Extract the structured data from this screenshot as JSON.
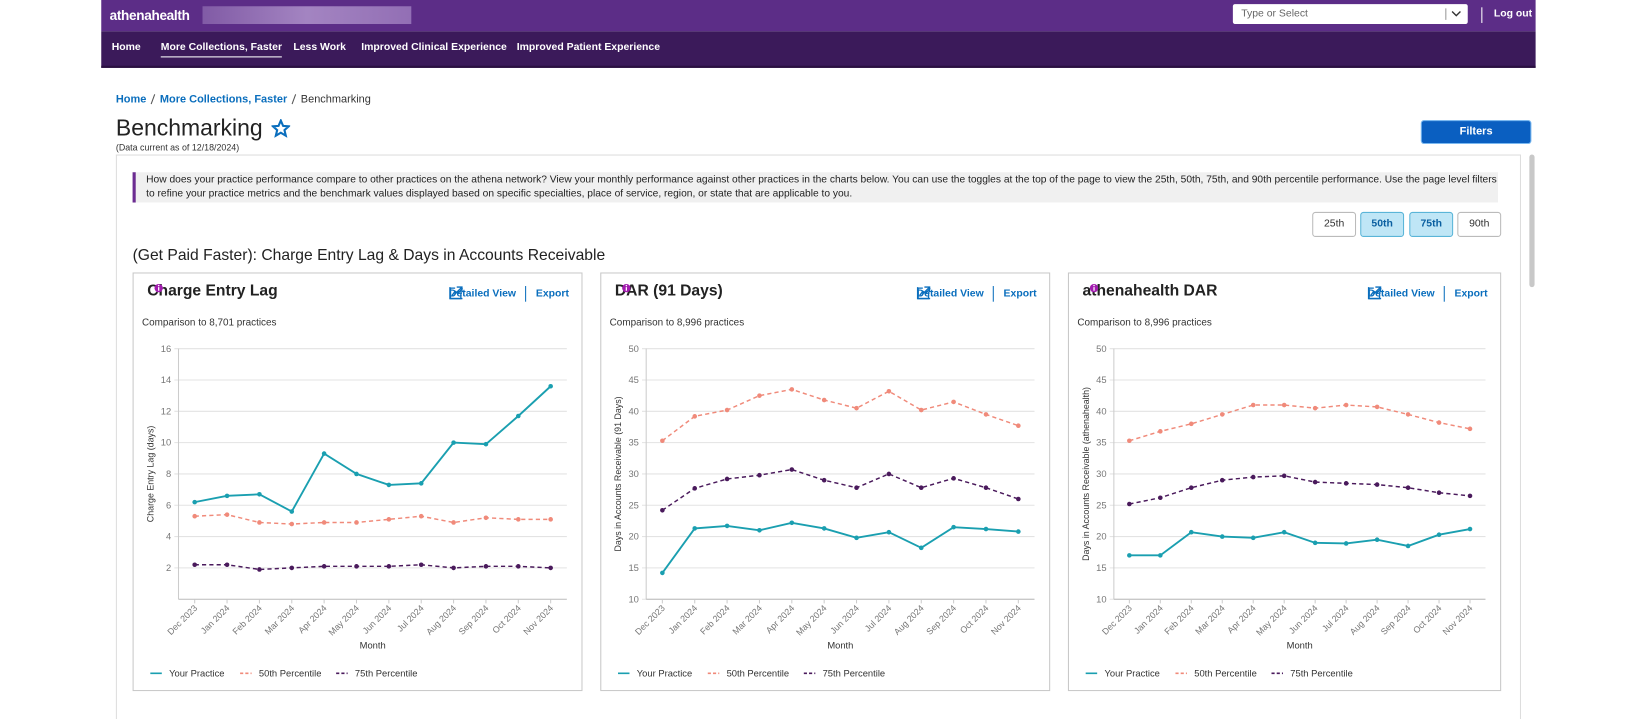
{
  "header": {
    "logo": "athenahealth",
    "search_placeholder": "Type or Select",
    "logout": "Log out"
  },
  "nav": {
    "items": [
      {
        "label": "Home",
        "active": false
      },
      {
        "label": "More Collections, Faster",
        "active": true
      },
      {
        "label": "Less Work",
        "active": false
      },
      {
        "label": "Improved Clinical Experience",
        "active": false
      },
      {
        "label": "Improved Patient Experience",
        "active": false
      }
    ]
  },
  "breadcrumb": [
    "Home",
    "More Collections, Faster",
    "Benchmarking"
  ],
  "page": {
    "title": "Benchmarking",
    "data_note": "(Data current as of 12/18/2024)",
    "filters_button": "Filters",
    "intro": "How does your practice performance compare to other practices on the athena network? View your monthly performance against other practices in the charts below. You can use the toggles at the top of the page to view the 25th, 50th, 75th, and 90th percentile performance. Use the page level filters to refine your practice metrics and the benchmark values displayed based on specific specialties, place of service, region, or state that are applicable to you.",
    "toggles": [
      {
        "label": "25th",
        "selected": false
      },
      {
        "label": "50th",
        "selected": true
      },
      {
        "label": "75th",
        "selected": true
      },
      {
        "label": "90th",
        "selected": false
      }
    ],
    "section_title": "(Get Paid Faster): Charge Entry Lag & Days in Accounts Receivable"
  },
  "chart_data": [
    {
      "type": "line",
      "title": "Charge Entry Lag",
      "links": [
        "Detailed View",
        "Export"
      ],
      "subtitle": "Comparison to 8,701 practices",
      "y_label": "Charge Entry Lag (days)",
      "x_label": "Month",
      "categories": [
        "Dec 2023",
        "Jan 2024",
        "Feb 2024",
        "Mar 2024",
        "Apr 2024",
        "May 2024",
        "Jun 2024",
        "Jul 2024",
        "Aug 2024",
        "Sep 2024",
        "Oct 2024",
        "Nov 2024"
      ],
      "ylim": [
        0,
        16
      ],
      "yticks": [
        2,
        4,
        6,
        8,
        10,
        12,
        14,
        16
      ],
      "grid": true,
      "series": [
        {
          "name": "Your Practice",
          "color": "#1a9fb0",
          "dashed": false,
          "values": [
            6.2,
            6.6,
            6.7,
            5.6,
            9.3,
            8.0,
            7.3,
            7.4,
            10.0,
            9.9,
            11.7,
            13.6
          ]
        },
        {
          "name": "50th Percentile",
          "color": "#f08a7a",
          "dashed": true,
          "values": [
            5.3,
            5.4,
            4.9,
            4.8,
            4.9,
            4.9,
            5.1,
            5.3,
            4.9,
            5.2,
            5.1,
            5.1
          ]
        },
        {
          "name": "75th Percentile",
          "color": "#4a1a5c",
          "dashed": true,
          "values": [
            2.2,
            2.2,
            1.9,
            2.0,
            2.1,
            2.1,
            2.1,
            2.2,
            2.0,
            2.1,
            2.1,
            2.0
          ]
        }
      ]
    },
    {
      "type": "line",
      "title": "DAR (91 Days)",
      "links": [
        "Detailed View",
        "Export"
      ],
      "subtitle": "Comparison to 8,996 practices",
      "y_label": "Days in Accounts Receivable (91 Days)",
      "x_label": "Month",
      "categories": [
        "Dec 2023",
        "Jan 2024",
        "Feb 2024",
        "Mar 2024",
        "Apr 2024",
        "May 2024",
        "Jun 2024",
        "Jul 2024",
        "Aug 2024",
        "Sep 2024",
        "Oct 2024",
        "Nov 2024"
      ],
      "ylim": [
        10,
        50
      ],
      "yticks": [
        10,
        15,
        20,
        25,
        30,
        35,
        40,
        45,
        50
      ],
      "grid": true,
      "series": [
        {
          "name": "Your Practice",
          "color": "#1a9fb0",
          "dashed": false,
          "values": [
            14.2,
            21.3,
            21.7,
            21.0,
            22.2,
            21.3,
            19.8,
            20.7,
            18.2,
            21.5,
            21.2,
            20.8
          ]
        },
        {
          "name": "50th Percentile",
          "color": "#f08a7a",
          "dashed": true,
          "values": [
            35.3,
            39.2,
            40.2,
            42.5,
            43.5,
            41.8,
            40.5,
            43.2,
            40.2,
            41.5,
            39.5,
            37.7
          ]
        },
        {
          "name": "75th Percentile",
          "color": "#4a1a5c",
          "dashed": true,
          "values": [
            24.2,
            27.7,
            29.2,
            29.8,
            30.7,
            29.0,
            27.8,
            30.0,
            27.8,
            29.3,
            27.8,
            26.0
          ]
        }
      ]
    },
    {
      "type": "line",
      "title": "athenahealth DAR",
      "links": [
        "Detailed View",
        "Export"
      ],
      "subtitle": "Comparison to 8,996 practices",
      "y_label": "Days in Accounts Receivable (athenahealth)",
      "x_label": "Month",
      "categories": [
        "Dec 2023",
        "Jan 2024",
        "Feb 2024",
        "Mar 2024",
        "Apr 2024",
        "May 2024",
        "Jun 2024",
        "Jul 2024",
        "Aug 2024",
        "Sep 2024",
        "Oct 2024",
        "Nov 2024"
      ],
      "ylim": [
        10,
        50
      ],
      "yticks": [
        10,
        15,
        20,
        25,
        30,
        35,
        40,
        45,
        50
      ],
      "grid": true,
      "series": [
        {
          "name": "Your Practice",
          "color": "#1a9fb0",
          "dashed": false,
          "values": [
            17.0,
            17.0,
            20.7,
            20.0,
            19.8,
            20.7,
            19.0,
            18.9,
            19.5,
            18.5,
            20.3,
            21.2
          ]
        },
        {
          "name": "50th Percentile",
          "color": "#f08a7a",
          "dashed": true,
          "values": [
            35.3,
            36.8,
            38.0,
            39.5,
            41.0,
            41.0,
            40.5,
            41.0,
            40.7,
            39.5,
            38.2,
            37.2
          ]
        },
        {
          "name": "75th Percentile",
          "color": "#4a1a5c",
          "dashed": true,
          "values": [
            25.2,
            26.2,
            27.8,
            29.0,
            29.5,
            29.7,
            28.7,
            28.5,
            28.3,
            27.8,
            27.0,
            26.5
          ]
        }
      ]
    }
  ]
}
